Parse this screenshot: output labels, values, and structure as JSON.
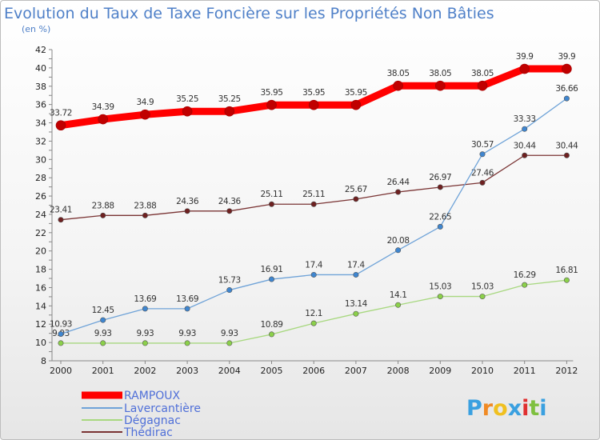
{
  "chart_data": {
    "type": "line",
    "title": "Evolution du Taux de Taxe Foncière sur les Propriétés Non Bâties",
    "subtitle": "(en %)",
    "xlabel": "",
    "ylabel": "",
    "ylim": [
      8,
      42
    ],
    "yticks": [
      8,
      10,
      12,
      14,
      16,
      18,
      20,
      22,
      24,
      26,
      28,
      30,
      32,
      34,
      36,
      38,
      40,
      42
    ],
    "x": [
      "2000",
      "2001",
      "2002",
      "2003",
      "2004",
      "2005",
      "2006",
      "2007",
      "2008",
      "2009",
      "2010",
      "2011",
      "2012"
    ],
    "grid": false,
    "legend_position": "bottom-left",
    "series": [
      {
        "name": "RAMPOUX",
        "color": "#ff0000",
        "marker_color": "#c00000",
        "values": [
          33.72,
          34.39,
          34.9,
          35.25,
          35.25,
          35.95,
          35.95,
          35.95,
          38.05,
          38.05,
          38.05,
          39.9,
          39.9
        ],
        "labels": [
          "33.72",
          "34.39",
          "34.9",
          "35.25",
          "35.25",
          "35.95",
          "35.95",
          "35.95",
          "38.05",
          "38.05",
          "38.05",
          "39.9",
          "39.9"
        ]
      },
      {
        "name": "Lavercantière",
        "color": "#6fa3d8",
        "marker_color": "#3f86d0",
        "values": [
          10.93,
          12.45,
          13.69,
          13.69,
          15.73,
          16.91,
          17.4,
          17.4,
          20.08,
          22.65,
          30.57,
          33.33,
          36.66
        ],
        "labels": [
          "10.93",
          "12.45",
          "13.69",
          "13.69",
          "15.73",
          "16.91",
          "17.4",
          "17.4",
          "20.08",
          "22.65",
          "30.57",
          "33.33",
          "36.66"
        ]
      },
      {
        "name": "Dégagnac",
        "color": "#a8d880",
        "marker_color": "#8bd04a",
        "values": [
          9.93,
          9.93,
          9.93,
          9.93,
          9.93,
          10.89,
          12.1,
          13.14,
          14.1,
          15.03,
          15.03,
          16.29,
          16.81
        ],
        "labels": [
          "9.93",
          "9.93",
          "9.93",
          "9.93",
          "9.93",
          "10.89",
          "12.1",
          "13.14",
          "14.1",
          "15.03",
          "15.03",
          "16.29",
          "16.81"
        ]
      },
      {
        "name": "Thédirac",
        "color": "#7a3434",
        "marker_color": "#6e2020",
        "values": [
          23.41,
          23.88,
          23.88,
          24.36,
          24.36,
          25.11,
          25.11,
          25.67,
          26.44,
          26.97,
          27.46,
          30.44,
          30.44
        ],
        "labels": [
          "23.41",
          "23.88",
          "23.88",
          "24.36",
          "24.36",
          "25.11",
          "25.11",
          "25.67",
          "26.44",
          "26.97",
          "27.46",
          "30.44",
          "30.44"
        ]
      }
    ]
  },
  "logo": {
    "letters": [
      "P",
      "r",
      "o",
      "x",
      "i",
      "t",
      "i"
    ],
    "colors": [
      "#3aa0e0",
      "#f08a24",
      "#f0c020",
      "#3aa0e0",
      "#e03030",
      "#7fc040",
      "#3aa0e0"
    ]
  }
}
